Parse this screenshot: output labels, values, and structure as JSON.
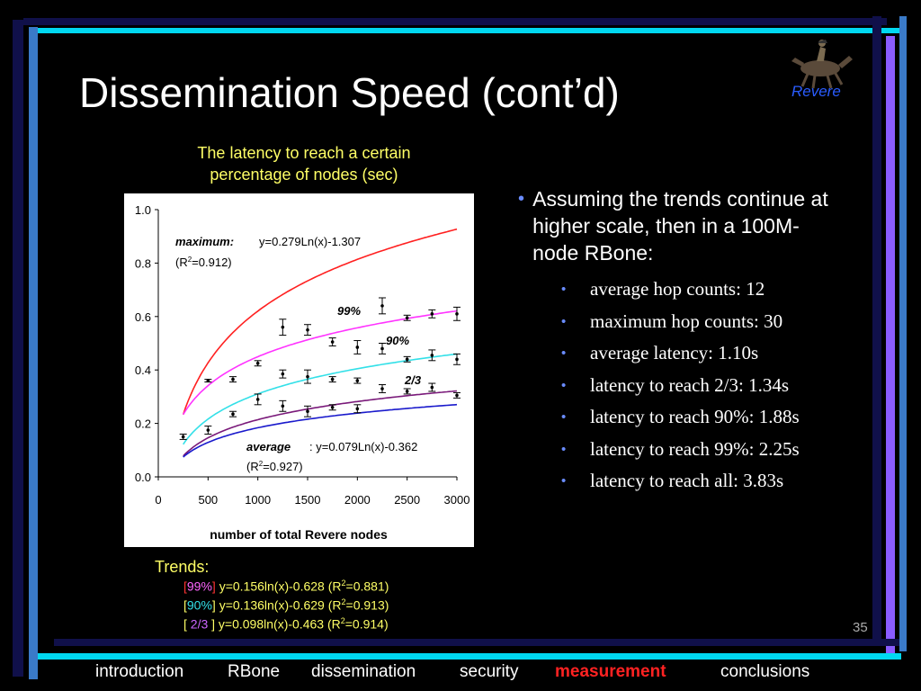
{
  "slide": {
    "title": "Dissemination Speed (cont’d)",
    "logo_text": "Revere",
    "page_number": "35"
  },
  "caption": {
    "line1": "The latency to reach a certain",
    "line2": "percentage of nodes (sec)"
  },
  "chart_data": {
    "type": "line",
    "xlabel": "number of total Revere nodes",
    "ylabel": "",
    "xlim": [
      0,
      3000
    ],
    "ylim": [
      0.0,
      1.0
    ],
    "x_ticks": [
      "0",
      "500",
      "1000",
      "1500",
      "2000",
      "2500",
      "3000"
    ],
    "y_ticks": [
      "0.0",
      "0.2",
      "0.4",
      "0.6",
      "0.8",
      "1.0"
    ],
    "grid": false,
    "annotations": {
      "maximum_label": "maximum:",
      "maximum_eq": " y=0.279Ln(x)-1.307",
      "maximum_r2_pre": "(R",
      "maximum_r2_sup": "2",
      "maximum_r2_post": "=0.912)",
      "average_label": "average",
      "average_eq": ": y=0.079Ln(x)-0.362",
      "average_r2_pre": "(R",
      "average_r2_sup": "2",
      "average_r2_post": "=0.927)",
      "pct99": "99%",
      "pct90": "90%",
      "pct23": "2/3"
    },
    "curves": [
      {
        "key": "maximum",
        "a": 0.279,
        "b": -1.307,
        "color": "#ff2020",
        "xmin": 250
      },
      {
        "key": "99%",
        "a": 0.156,
        "b": -0.628,
        "color": "#ff33ff",
        "xmin": 250
      },
      {
        "key": "90%",
        "a": 0.136,
        "b": -0.629,
        "color": "#33e0e8",
        "xmin": 250
      },
      {
        "key": "2/3",
        "a": 0.098,
        "b": -0.463,
        "color": "#7a1a7a",
        "xmin": 250
      },
      {
        "key": "average",
        "a": 0.079,
        "b": -0.362,
        "color": "#1a1acc",
        "xmin": 250
      }
    ],
    "error_bars": [
      {
        "x": 250,
        "y": 0.15,
        "lo": 0.14,
        "hi": 0.16
      },
      {
        "x": 500,
        "y": 0.36,
        "lo": 0.355,
        "hi": 0.365
      },
      {
        "x": 500,
        "y": 0.175,
        "lo": 0.16,
        "hi": 0.19
      },
      {
        "x": 750,
        "y": 0.365,
        "lo": 0.355,
        "hi": 0.375
      },
      {
        "x": 750,
        "y": 0.235,
        "lo": 0.225,
        "hi": 0.245
      },
      {
        "x": 1000,
        "y": 0.425,
        "lo": 0.415,
        "hi": 0.435
      },
      {
        "x": 1000,
        "y": 0.29,
        "lo": 0.27,
        "hi": 0.31
      },
      {
        "x": 1250,
        "y": 0.56,
        "lo": 0.53,
        "hi": 0.59
      },
      {
        "x": 1250,
        "y": 0.385,
        "lo": 0.37,
        "hi": 0.4
      },
      {
        "x": 1250,
        "y": 0.265,
        "lo": 0.245,
        "hi": 0.285
      },
      {
        "x": 1500,
        "y": 0.55,
        "lo": 0.53,
        "hi": 0.57
      },
      {
        "x": 1500,
        "y": 0.375,
        "lo": 0.35,
        "hi": 0.4
      },
      {
        "x": 1500,
        "y": 0.245,
        "lo": 0.225,
        "hi": 0.265
      },
      {
        "x": 1750,
        "y": 0.505,
        "lo": 0.49,
        "hi": 0.52
      },
      {
        "x": 1750,
        "y": 0.365,
        "lo": 0.355,
        "hi": 0.375
      },
      {
        "x": 1750,
        "y": 0.26,
        "lo": 0.25,
        "hi": 0.27
      },
      {
        "x": 2000,
        "y": 0.485,
        "lo": 0.46,
        "hi": 0.51
      },
      {
        "x": 2000,
        "y": 0.36,
        "lo": 0.35,
        "hi": 0.37
      },
      {
        "x": 2000,
        "y": 0.255,
        "lo": 0.24,
        "hi": 0.27
      },
      {
        "x": 2250,
        "y": 0.64,
        "lo": 0.61,
        "hi": 0.67
      },
      {
        "x": 2250,
        "y": 0.48,
        "lo": 0.46,
        "hi": 0.5
      },
      {
        "x": 2250,
        "y": 0.33,
        "lo": 0.315,
        "hi": 0.345
      },
      {
        "x": 2500,
        "y": 0.595,
        "lo": 0.585,
        "hi": 0.605
      },
      {
        "x": 2500,
        "y": 0.44,
        "lo": 0.43,
        "hi": 0.45
      },
      {
        "x": 2500,
        "y": 0.32,
        "lo": 0.31,
        "hi": 0.33
      },
      {
        "x": 2750,
        "y": 0.61,
        "lo": 0.595,
        "hi": 0.625
      },
      {
        "x": 2750,
        "y": 0.455,
        "lo": 0.435,
        "hi": 0.475
      },
      {
        "x": 2750,
        "y": 0.335,
        "lo": 0.32,
        "hi": 0.35
      },
      {
        "x": 3000,
        "y": 0.61,
        "lo": 0.585,
        "hi": 0.635
      },
      {
        "x": 3000,
        "y": 0.44,
        "lo": 0.42,
        "hi": 0.46
      },
      {
        "x": 3000,
        "y": 0.305,
        "lo": 0.295,
        "hi": 0.315
      }
    ]
  },
  "bullets": {
    "main": "Assuming the trends continue at higher scale, then in a 100M-node RBone:",
    "items": [
      "average hop counts: 12",
      "maximum hop counts: 30",
      "average latency: 1.10s",
      "latency to reach 2/3: 1.34s",
      "latency to reach 90%: 1.88s",
      "latency to reach 99%: 2.25s",
      "latency to reach all: 3.83s"
    ]
  },
  "trends": {
    "heading": "Trends:",
    "rows": [
      {
        "open": "[",
        "tag": "99%",
        "close": "]",
        "eq": " y=0.156ln(x)-0.628   (R",
        "sup": "2",
        "post": "=0.881)",
        "tag_color": "#ff66ff"
      },
      {
        "open": "[",
        "tag": "90%",
        "close": "]",
        "eq": " y=0.136ln(x)-0.629   (R",
        "sup": "2",
        "post": "=0.913)",
        "tag_color": "#33e0e8"
      },
      {
        "open": "[ ",
        "tag": "2/3",
        "close": " ]",
        "eq": " y=0.098ln(x)-0.463   (R",
        "sup": "2",
        "post": "=0.914)",
        "tag_color": "#cc66ff"
      }
    ]
  },
  "nav": {
    "items": [
      "introduction",
      "RBone",
      "dissemination",
      "security",
      "measurement",
      "conclusions"
    ],
    "active": "measurement"
  },
  "colors": {
    "accent_blue": "#3a5cff",
    "accent_cyan": "#00e0ff",
    "accent_purple": "#8a5cff",
    "highlight_yellow": "#ffff66",
    "active_red": "#ff2222"
  }
}
